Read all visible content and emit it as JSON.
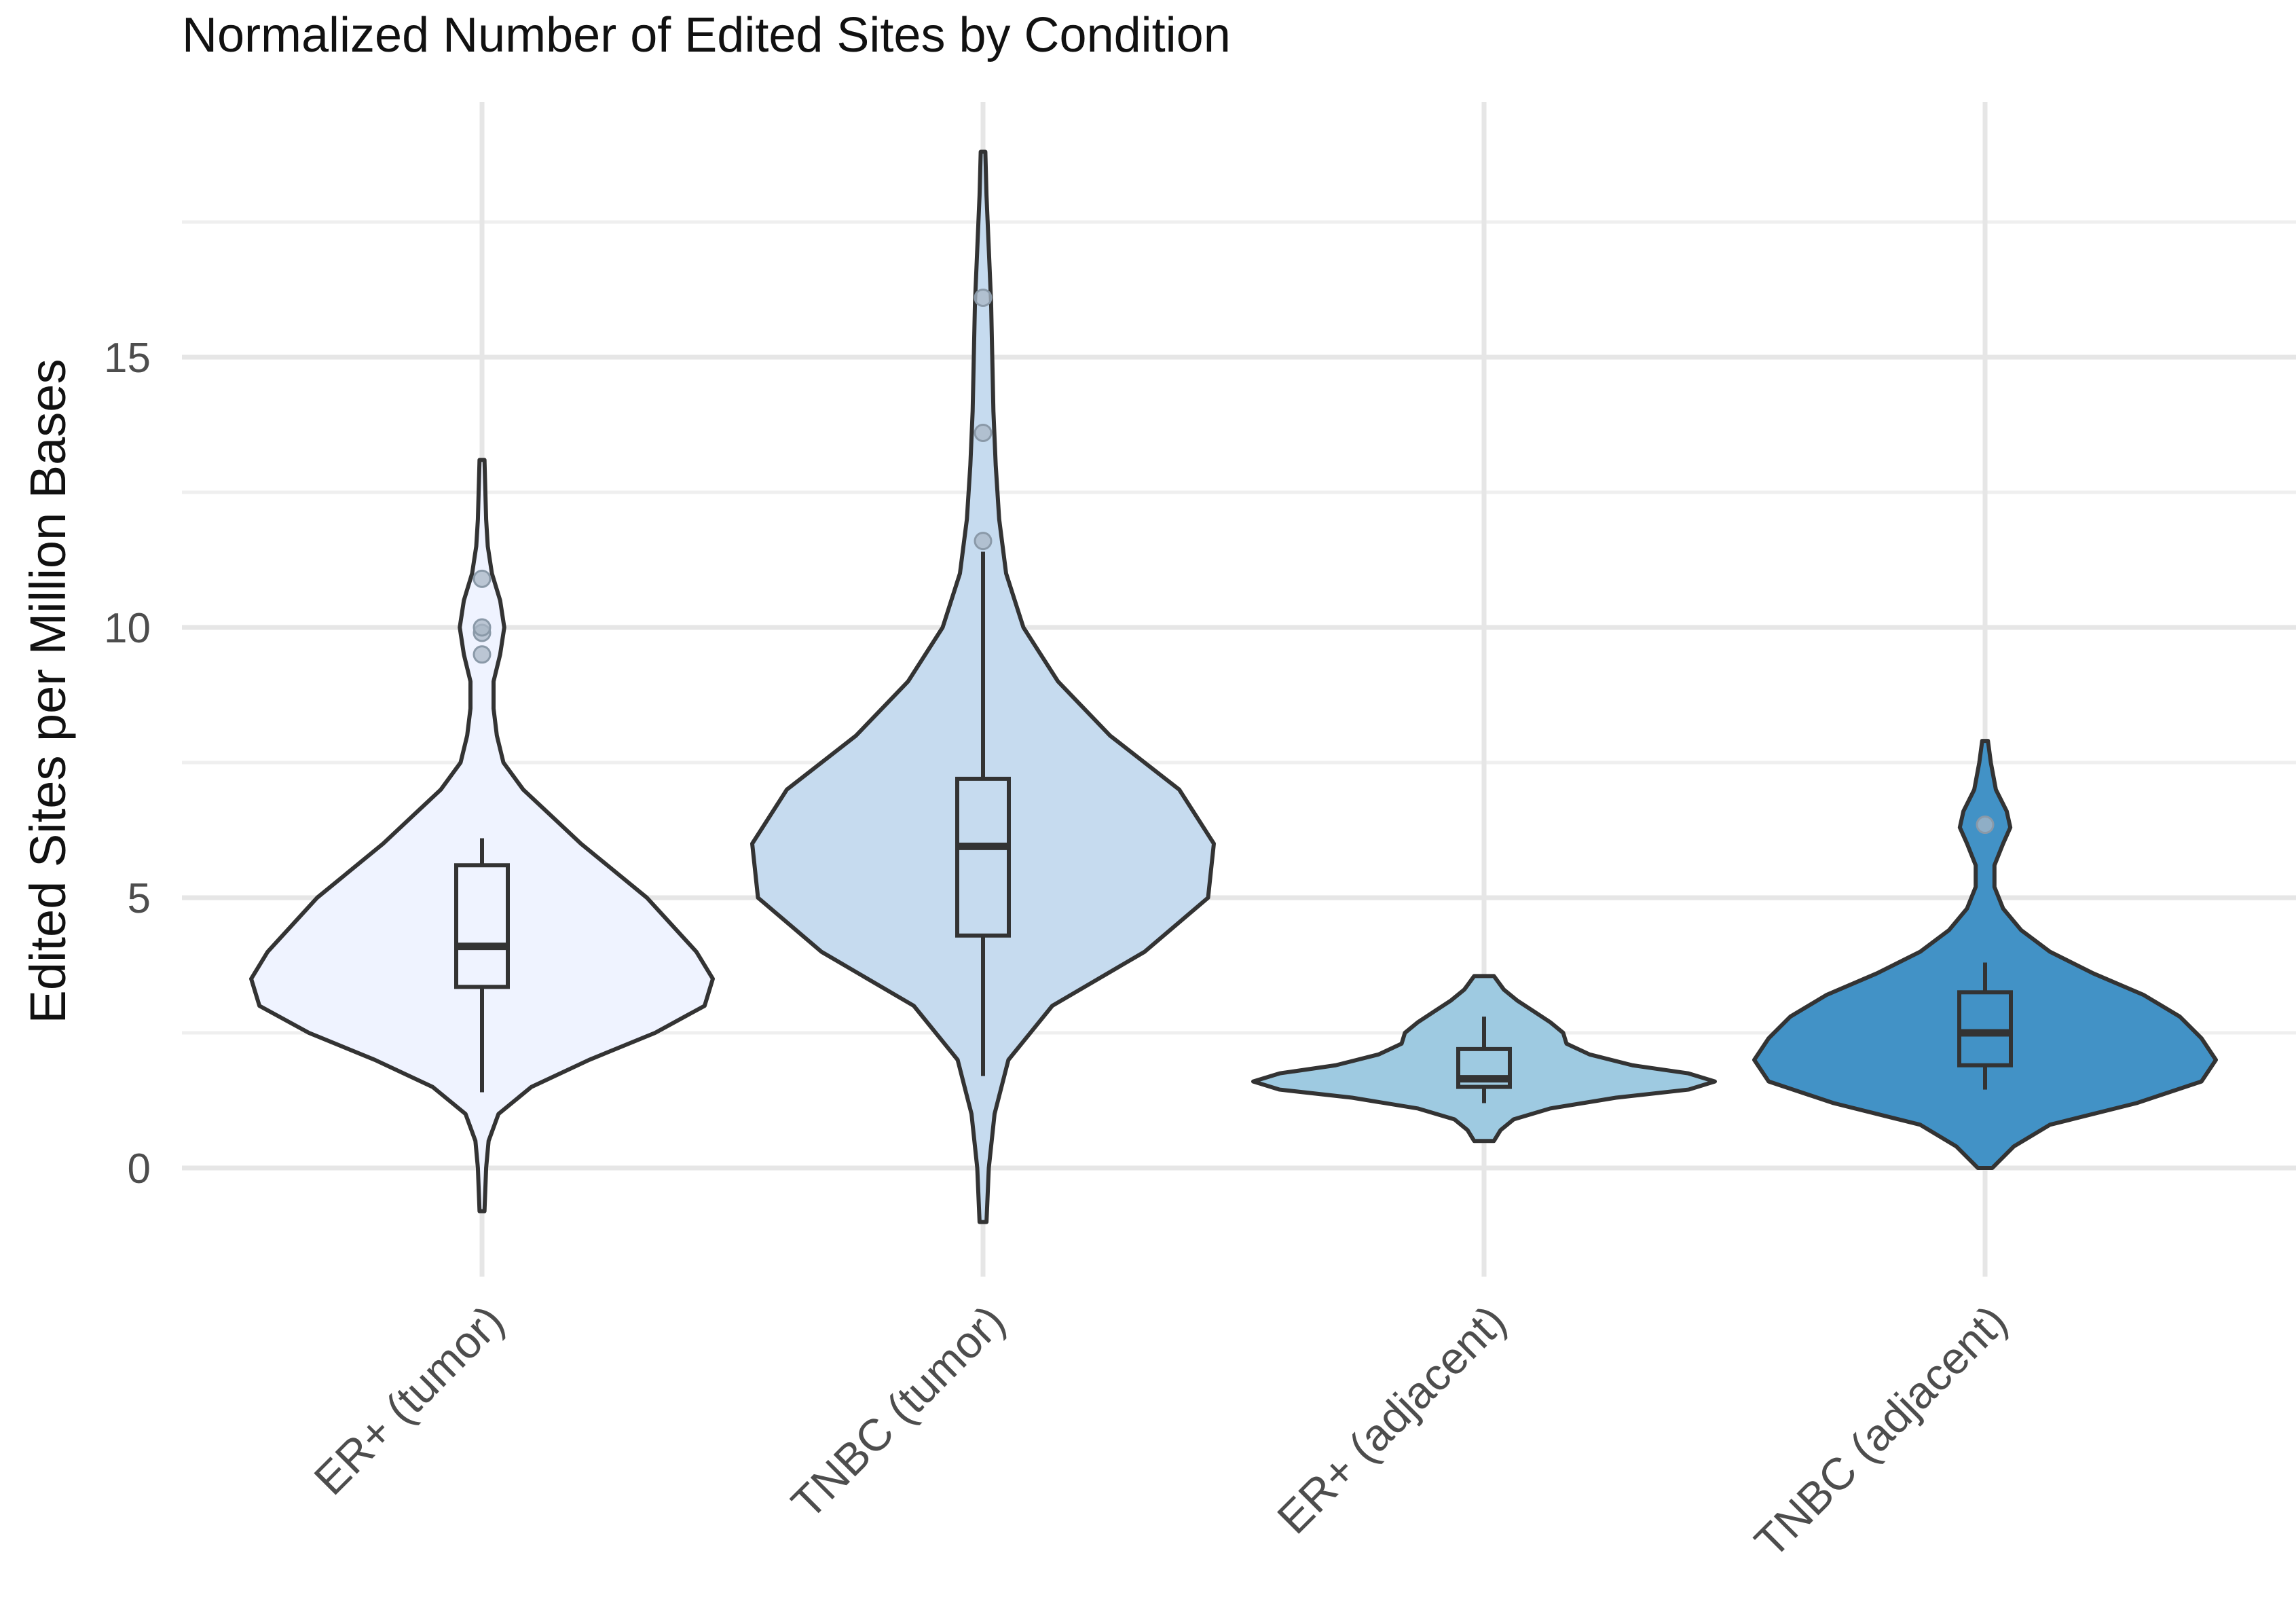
{
  "chart_data": {
    "type": "violin",
    "title": "Normalized Number of Edited Sites by Condition",
    "xlabel": "",
    "ylabel": "Edited Sites per Million Bases",
    "ylim": [
      -2.2,
      19.6
    ],
    "yticks": [
      0,
      5,
      10,
      15
    ],
    "grid": true,
    "legend": "none",
    "groups": [
      {
        "name": "ER+ (tumor)",
        "fill": "#eff3ff",
        "violin_range": [
          -0.8,
          13.1
        ],
        "density": [
          [
            -0.8,
            0.003
          ],
          [
            0,
            0.005
          ],
          [
            0.5,
            0.008
          ],
          [
            1,
            0.02
          ],
          [
            1.5,
            0.06
          ],
          [
            2,
            0.13
          ],
          [
            2.5,
            0.21
          ],
          [
            3,
            0.27
          ],
          [
            3.5,
            0.28
          ],
          [
            4,
            0.26
          ],
          [
            4.5,
            0.23
          ],
          [
            5,
            0.2
          ],
          [
            5.5,
            0.16
          ],
          [
            6,
            0.12
          ],
          [
            6.5,
            0.085
          ],
          [
            7,
            0.05
          ],
          [
            7.5,
            0.026
          ],
          [
            8,
            0.018
          ],
          [
            8.5,
            0.014
          ],
          [
            9,
            0.014
          ],
          [
            9.5,
            0.022
          ],
          [
            10,
            0.027
          ],
          [
            10.5,
            0.022
          ],
          [
            11,
            0.012
          ],
          [
            11.5,
            0.007
          ],
          [
            12,
            0.005
          ],
          [
            13.1,
            0.003
          ]
        ],
        "box": {
          "q1": 3.35,
          "median": 4.1,
          "q3": 5.6,
          "whisker_low": 1.4,
          "whisker_high": 6.1
        },
        "outliers": [
          9.5,
          9.9,
          10.0,
          10.9
        ]
      },
      {
        "name": "TNBC (tumor)",
        "fill": "#c6dbef",
        "violin_range": [
          -1.0,
          18.8
        ],
        "density": [
          [
            -1,
            0.003
          ],
          [
            0,
            0.005
          ],
          [
            1,
            0.01
          ],
          [
            2,
            0.022
          ],
          [
            3,
            0.06
          ],
          [
            4,
            0.14
          ],
          [
            5,
            0.195
          ],
          [
            6,
            0.2
          ],
          [
            7,
            0.17
          ],
          [
            8,
            0.11
          ],
          [
            9,
            0.065
          ],
          [
            10,
            0.035
          ],
          [
            11,
            0.02
          ],
          [
            12,
            0.014
          ],
          [
            13,
            0.011
          ],
          [
            14,
            0.009
          ],
          [
            15,
            0.008
          ],
          [
            16,
            0.007
          ],
          [
            17,
            0.005
          ],
          [
            18,
            0.003
          ],
          [
            18.8,
            0.002
          ]
        ],
        "box": {
          "q1": 4.3,
          "median": 5.95,
          "q3": 7.2,
          "whisker_low": 1.7,
          "whisker_high": 11.4
        },
        "outliers": [
          11.6,
          13.6,
          16.1
        ]
      },
      {
        "name": "ER+ (adjacent)",
        "fill": "#9ecae1",
        "violin_range": [
          0.5,
          3.55
        ],
        "density": [
          [
            0.5,
            0.03
          ],
          [
            0.7,
            0.05
          ],
          [
            0.9,
            0.09
          ],
          [
            1.1,
            0.2
          ],
          [
            1.3,
            0.4
          ],
          [
            1.45,
            0.62
          ],
          [
            1.6,
            0.7
          ],
          [
            1.75,
            0.62
          ],
          [
            1.9,
            0.45
          ],
          [
            2.1,
            0.32
          ],
          [
            2.3,
            0.25
          ],
          [
            2.5,
            0.24
          ],
          [
            2.7,
            0.2
          ],
          [
            2.9,
            0.15
          ],
          [
            3.1,
            0.1
          ],
          [
            3.3,
            0.06
          ],
          [
            3.55,
            0.03
          ]
        ],
        "box": {
          "q1": 1.5,
          "median": 1.65,
          "q3": 2.2,
          "whisker_low": 1.2,
          "whisker_high": 2.8
        },
        "outliers": []
      },
      {
        "name": "TNBC (adjacent)",
        "fill": "#4292c6",
        "violin_range": [
          0.0,
          7.9
        ],
        "density": [
          [
            0,
            0.01
          ],
          [
            0.4,
            0.04
          ],
          [
            0.8,
            0.09
          ],
          [
            1.2,
            0.21
          ],
          [
            1.6,
            0.3
          ],
          [
            2,
            0.32
          ],
          [
            2.4,
            0.3
          ],
          [
            2.8,
            0.27
          ],
          [
            3.2,
            0.22
          ],
          [
            3.6,
            0.15
          ],
          [
            4,
            0.09
          ],
          [
            4.4,
            0.05
          ],
          [
            4.8,
            0.025
          ],
          [
            5.2,
            0.013
          ],
          [
            5.6,
            0.013
          ],
          [
            6,
            0.025
          ],
          [
            6.3,
            0.035
          ],
          [
            6.6,
            0.03
          ],
          [
            7,
            0.015
          ],
          [
            7.5,
            0.008
          ],
          [
            7.9,
            0.004
          ]
        ],
        "box": {
          "q1": 1.9,
          "median": 2.5,
          "q3": 3.25,
          "whisker_low": 1.45,
          "whisker_high": 3.8
        },
        "outliers": [
          6.35
        ]
      }
    ]
  }
}
